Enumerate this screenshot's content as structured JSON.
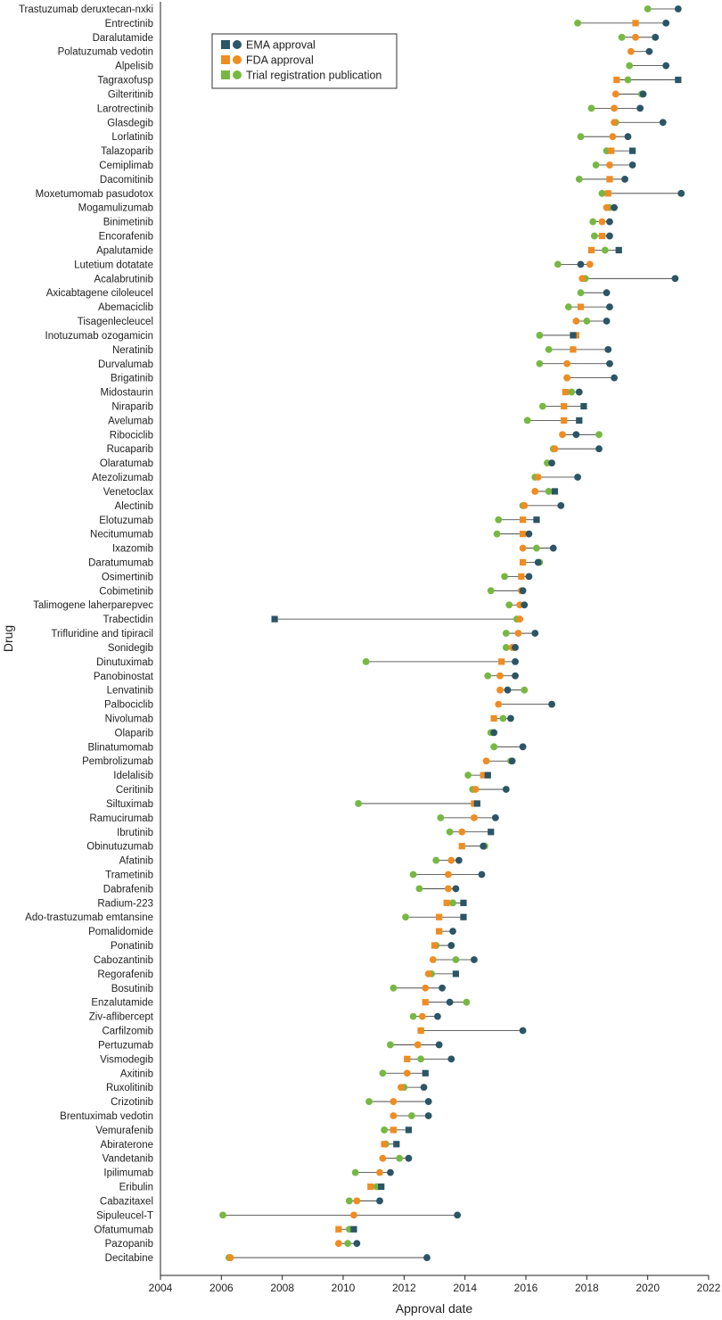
{
  "chart_data": {
    "type": "scatter",
    "xlabel": "Approval date",
    "ylabel": "Drug",
    "xlim": [
      2004,
      2022
    ],
    "x_ticks": [
      "2004",
      "2006",
      "2008",
      "2010",
      "2012",
      "2014",
      "2016",
      "2018",
      "2020",
      "2022"
    ],
    "grid": false,
    "legend_position": "top",
    "colors": {
      "ema": "#2c5566",
      "fda": "#ef8c22",
      "trial": "#77b843",
      "connector": "#333333"
    },
    "legend": [
      {
        "key": "ema",
        "label": "EMA approval"
      },
      {
        "key": "fda",
        "label": "FDA approval"
      },
      {
        "key": "trial",
        "label": "Trial registration publication"
      }
    ],
    "drugs": [
      {
        "name": "Trastuzumab deruxtecan-nxki",
        "ema": 2021.0,
        "ema_shape": "circle",
        "fda": null,
        "fda_shape": "circle",
        "trial": 2020.0,
        "trial_shape": "circle"
      },
      {
        "name": "Entrectinib",
        "ema": 2020.6,
        "ema_shape": "circle",
        "fda": 2019.6,
        "fda_shape": "square",
        "trial": 2017.7,
        "trial_shape": "circle"
      },
      {
        "name": "Daralutamide",
        "ema": 2020.25,
        "ema_shape": "circle",
        "fda": 2019.6,
        "fda_shape": "circle",
        "trial": 2019.15,
        "trial_shape": "circle"
      },
      {
        "name": "Polatuzumab vedotin",
        "ema": 2020.05,
        "ema_shape": "circle",
        "fda": 2019.45,
        "fda_shape": "circle",
        "trial": null,
        "trial_shape": "circle"
      },
      {
        "name": "Alpelisib",
        "ema": 2020.6,
        "ema_shape": "circle",
        "fda": null,
        "fda_shape": "circle",
        "trial": 2019.4,
        "trial_shape": "circle"
      },
      {
        "name": "Tagraxofusp",
        "ema": 2021.0,
        "ema_shape": "square",
        "fda": 2018.98,
        "fda_shape": "square",
        "trial": 2019.35,
        "trial_shape": "circle"
      },
      {
        "name": "Gilteritinib",
        "ema": 2019.85,
        "ema_shape": "circle",
        "fda": 2018.95,
        "fda_shape": "circle",
        "trial": 2019.8,
        "trial_shape": "circle"
      },
      {
        "name": "Larotrectinib",
        "ema": 2019.75,
        "ema_shape": "circle",
        "fda": 2018.9,
        "fda_shape": "circle",
        "trial": 2018.15,
        "trial_shape": "circle"
      },
      {
        "name": "Glasdegib",
        "ema": 2020.5,
        "ema_shape": "circle",
        "fda": 2018.9,
        "fda_shape": "circle",
        "trial": 2018.95,
        "trial_shape": "circle"
      },
      {
        "name": "Lorlatinib",
        "ema": 2019.35,
        "ema_shape": "circle",
        "fda": 2018.85,
        "fda_shape": "circle",
        "trial": 2017.8,
        "trial_shape": "circle"
      },
      {
        "name": "Talazoparib",
        "ema": 2019.5,
        "ema_shape": "square",
        "fda": 2018.8,
        "fda_shape": "square",
        "trial": 2018.65,
        "trial_shape": "circle"
      },
      {
        "name": "Cemiplimab",
        "ema": 2019.5,
        "ema_shape": "circle",
        "fda": 2018.75,
        "fda_shape": "circle",
        "trial": 2018.3,
        "trial_shape": "circle"
      },
      {
        "name": "Dacomitinib",
        "ema": 2019.25,
        "ema_shape": "circle",
        "fda": 2018.75,
        "fda_shape": "square",
        "trial": 2017.75,
        "trial_shape": "circle"
      },
      {
        "name": "Moxetumomab pasudotox",
        "ema": 2021.1,
        "ema_shape": "circle",
        "fda": 2018.7,
        "fda_shape": "square",
        "trial": 2018.5,
        "trial_shape": "circle"
      },
      {
        "name": "Mogamulizumab",
        "ema": 2018.9,
        "ema_shape": "circle",
        "fda": 2018.65,
        "fda_shape": "circle",
        "trial": 2018.75,
        "trial_shape": "circle"
      },
      {
        "name": "Binimetinib",
        "ema": 2018.75,
        "ema_shape": "circle",
        "fda": 2018.5,
        "fda_shape": "circle",
        "trial": 2018.2,
        "trial_shape": "circle"
      },
      {
        "name": "Encorafenib",
        "ema": 2018.75,
        "ema_shape": "circle",
        "fda": 2018.5,
        "fda_shape": "square",
        "trial": 2018.25,
        "trial_shape": "circle"
      },
      {
        "name": "Apalutamide",
        "ema": 2019.05,
        "ema_shape": "square",
        "fda": 2018.15,
        "fda_shape": "square",
        "trial": 2018.6,
        "trial_shape": "circle"
      },
      {
        "name": "Lutetium dotatate",
        "ema": 2017.8,
        "ema_shape": "circle",
        "fda": 2018.1,
        "fda_shape": "circle",
        "trial": 2017.05,
        "trial_shape": "circle"
      },
      {
        "name": "Acalabrutinib",
        "ema": 2020.9,
        "ema_shape": "circle",
        "fda": 2017.85,
        "fda_shape": "circle",
        "trial": 2017.95,
        "trial_shape": "circle"
      },
      {
        "name": "Axicabtagene ciloleucel",
        "ema": 2018.65,
        "ema_shape": "circle",
        "fda": null,
        "fda_shape": "circle",
        "trial": 2017.8,
        "trial_shape": "circle"
      },
      {
        "name": "Abemaciclib",
        "ema": 2018.75,
        "ema_shape": "circle",
        "fda": 2017.8,
        "fda_shape": "square",
        "trial": 2017.4,
        "trial_shape": "circle"
      },
      {
        "name": "Tisagenlecleucel",
        "ema": 2018.65,
        "ema_shape": "circle",
        "fda": 2017.65,
        "fda_shape": "circle",
        "trial": 2018.0,
        "trial_shape": "circle"
      },
      {
        "name": "Inotuzumab ozogamicin",
        "ema": 2017.55,
        "ema_shape": "square",
        "fda": 2017.65,
        "fda_shape": "square",
        "trial": 2016.45,
        "trial_shape": "circle"
      },
      {
        "name": "Neratinib",
        "ema": 2018.7,
        "ema_shape": "circle",
        "fda": 2017.55,
        "fda_shape": "square",
        "trial": 2016.75,
        "trial_shape": "circle"
      },
      {
        "name": "Durvalumab",
        "ema": 2018.75,
        "ema_shape": "circle",
        "fda": 2017.35,
        "fda_shape": "circle",
        "trial": 2016.45,
        "trial_shape": "circle"
      },
      {
        "name": "Brigatinib",
        "ema": 2018.9,
        "ema_shape": "circle",
        "fda": 2017.35,
        "fda_shape": "circle",
        "trial": 2017.35,
        "trial_shape": "circle"
      },
      {
        "name": "Midostaurin",
        "ema": 2017.75,
        "ema_shape": "circle",
        "fda": 2017.3,
        "fda_shape": "square",
        "trial": 2017.5,
        "trial_shape": "circle"
      },
      {
        "name": "Niraparib",
        "ema": 2017.9,
        "ema_shape": "square",
        "fda": 2017.25,
        "fda_shape": "square",
        "trial": 2016.55,
        "trial_shape": "circle"
      },
      {
        "name": "Avelumab",
        "ema": 2017.75,
        "ema_shape": "square",
        "fda": 2017.25,
        "fda_shape": "square",
        "trial": 2016.05,
        "trial_shape": "circle"
      },
      {
        "name": "Ribociclib",
        "ema": 2017.65,
        "ema_shape": "circle",
        "fda": 2017.2,
        "fda_shape": "circle",
        "trial": 2018.4,
        "trial_shape": "circle"
      },
      {
        "name": "Rucaparib",
        "ema": 2018.4,
        "ema_shape": "circle",
        "fda": 2016.95,
        "fda_shape": "circle",
        "trial": 2016.9,
        "trial_shape": "circle"
      },
      {
        "name": "Olaratumab",
        "ema": 2016.85,
        "ema_shape": "circle",
        "fda": null,
        "fda_shape": "circle",
        "trial": 2016.7,
        "trial_shape": "circle"
      },
      {
        "name": "Atezolizumab",
        "ema": 2017.7,
        "ema_shape": "circle",
        "fda": 2016.4,
        "fda_shape": "circle",
        "trial": 2016.3,
        "trial_shape": "circle"
      },
      {
        "name": "Venetoclax",
        "ema": 2016.95,
        "ema_shape": "square",
        "fda": 2016.3,
        "fda_shape": "circle",
        "trial": 2016.75,
        "trial_shape": "circle"
      },
      {
        "name": "Alectinib",
        "ema": 2017.15,
        "ema_shape": "circle",
        "fda": 2015.95,
        "fda_shape": "circle",
        "trial": 2015.9,
        "trial_shape": "circle"
      },
      {
        "name": "Elotuzumab",
        "ema": 2016.35,
        "ema_shape": "square",
        "fda": 2015.9,
        "fda_shape": "square",
        "trial": 2015.1,
        "trial_shape": "circle"
      },
      {
        "name": "Necitumumab",
        "ema": 2016.1,
        "ema_shape": "circle",
        "fda": 2015.9,
        "fda_shape": "square",
        "trial": 2015.05,
        "trial_shape": "circle"
      },
      {
        "name": "Ixazomib",
        "ema": 2016.9,
        "ema_shape": "circle",
        "fda": 2015.9,
        "fda_shape": "circle",
        "trial": 2016.35,
        "trial_shape": "circle"
      },
      {
        "name": "Daratumumab",
        "ema": 2016.4,
        "ema_shape": "circle",
        "fda": 2015.9,
        "fda_shape": "square",
        "trial": 2016.45,
        "trial_shape": "circle"
      },
      {
        "name": "Osimertinib",
        "ema": 2016.1,
        "ema_shape": "circle",
        "fda": 2015.85,
        "fda_shape": "square",
        "trial": 2015.3,
        "trial_shape": "circle"
      },
      {
        "name": "Cobimetinib",
        "ema": 2015.9,
        "ema_shape": "circle",
        "fda": 2015.85,
        "fda_shape": "circle",
        "trial": 2014.85,
        "trial_shape": "circle"
      },
      {
        "name": "Talimogene laherparepvec",
        "ema": 2015.95,
        "ema_shape": "circle",
        "fda": 2015.8,
        "fda_shape": "circle",
        "trial": 2015.45,
        "trial_shape": "circle"
      },
      {
        "name": "Trabectidin",
        "ema": 2007.75,
        "ema_shape": "square",
        "fda": 2015.8,
        "fda_shape": "circle",
        "trial": 2015.7,
        "trial_shape": "circle"
      },
      {
        "name": "Trifluridine and tipiracil",
        "ema": 2016.3,
        "ema_shape": "circle",
        "fda": 2015.75,
        "fda_shape": "circle",
        "trial": 2015.35,
        "trial_shape": "circle"
      },
      {
        "name": "Sonidegib",
        "ema": 2015.65,
        "ema_shape": "circle",
        "fda": 2015.55,
        "fda_shape": "circle",
        "trial": 2015.35,
        "trial_shape": "circle"
      },
      {
        "name": "Dinutuximab",
        "ema": 2015.65,
        "ema_shape": "circle",
        "fda": 2015.2,
        "fda_shape": "square",
        "trial": 2010.75,
        "trial_shape": "circle"
      },
      {
        "name": "Panobinostat",
        "ema": 2015.65,
        "ema_shape": "circle",
        "fda": 2015.15,
        "fda_shape": "circle",
        "trial": 2014.75,
        "trial_shape": "circle"
      },
      {
        "name": "Lenvatinib",
        "ema": 2015.4,
        "ema_shape": "circle",
        "fda": 2015.15,
        "fda_shape": "circle",
        "trial": 2015.95,
        "trial_shape": "circle"
      },
      {
        "name": "Palbociclib",
        "ema": 2016.85,
        "ema_shape": "circle",
        "fda": 2015.1,
        "fda_shape": "circle",
        "trial": 2016.85,
        "trial_shape": "circle"
      },
      {
        "name": "Nivolumab",
        "ema": 2015.5,
        "ema_shape": "circle",
        "fda": 2014.95,
        "fda_shape": "square",
        "trial": 2015.25,
        "trial_shape": "circle"
      },
      {
        "name": "Olaparib",
        "ema": 2014.95,
        "ema_shape": "circle",
        "fda": null,
        "fda_shape": "circle",
        "trial": 2014.85,
        "trial_shape": "circle"
      },
      {
        "name": "Blinatumomab",
        "ema": 2015.9,
        "ema_shape": "circle",
        "fda": null,
        "fda_shape": "circle",
        "trial": 2014.95,
        "trial_shape": "circle"
      },
      {
        "name": "Pembrolizumab",
        "ema": 2015.55,
        "ema_shape": "circle",
        "fda": 2014.7,
        "fda_shape": "circle",
        "trial": 2015.5,
        "trial_shape": "circle"
      },
      {
        "name": "Idelalisib",
        "ema": 2014.75,
        "ema_shape": "square",
        "fda": 2014.6,
        "fda_shape": "square",
        "trial": 2014.1,
        "trial_shape": "circle"
      },
      {
        "name": "Ceritinib",
        "ema": 2015.35,
        "ema_shape": "circle",
        "fda": 2014.35,
        "fda_shape": "circle",
        "trial": 2014.25,
        "trial_shape": "circle"
      },
      {
        "name": "Siltuximab",
        "ema": 2014.4,
        "ema_shape": "square",
        "fda": 2014.3,
        "fda_shape": "square",
        "trial": 2010.5,
        "trial_shape": "circle"
      },
      {
        "name": "Ramucirumab",
        "ema": 2015.0,
        "ema_shape": "circle",
        "fda": 2014.3,
        "fda_shape": "circle",
        "trial": 2013.2,
        "trial_shape": "circle"
      },
      {
        "name": "Ibrutinib",
        "ema": 2014.85,
        "ema_shape": "square",
        "fda": 2013.9,
        "fda_shape": "circle",
        "trial": 2013.5,
        "trial_shape": "circle"
      },
      {
        "name": "Obinutuzumab",
        "ema": 2014.6,
        "ema_shape": "circle",
        "fda": 2013.9,
        "fda_shape": "square",
        "trial": 2014.65,
        "trial_shape": "circle"
      },
      {
        "name": "Afatinib",
        "ema": 2013.8,
        "ema_shape": "circle",
        "fda": 2013.55,
        "fda_shape": "circle",
        "trial": 2013.05,
        "trial_shape": "circle"
      },
      {
        "name": "Trametinib",
        "ema": 2014.55,
        "ema_shape": "circle",
        "fda": 2013.45,
        "fda_shape": "circle",
        "trial": 2012.3,
        "trial_shape": "circle"
      },
      {
        "name": "Dabrafenib",
        "ema": 2013.7,
        "ema_shape": "circle",
        "fda": 2013.45,
        "fda_shape": "circle",
        "trial": 2012.5,
        "trial_shape": "circle"
      },
      {
        "name": "Radium-223",
        "ema": 2013.95,
        "ema_shape": "square",
        "fda": 2013.4,
        "fda_shape": "square",
        "trial": 2013.6,
        "trial_shape": "circle"
      },
      {
        "name": "Ado-trastuzumab emtansine",
        "ema": 2013.95,
        "ema_shape": "square",
        "fda": 2013.15,
        "fda_shape": "square",
        "trial": 2012.05,
        "trial_shape": "circle"
      },
      {
        "name": "Pomalidomide",
        "ema": 2013.6,
        "ema_shape": "circle",
        "fda": 2013.15,
        "fda_shape": "square",
        "trial": null,
        "trial_shape": "circle"
      },
      {
        "name": "Ponatinib",
        "ema": 2013.55,
        "ema_shape": "circle",
        "fda": 2013.0,
        "fda_shape": "square",
        "trial": 2013.05,
        "trial_shape": "circle"
      },
      {
        "name": "Cabozantinib",
        "ema": 2014.3,
        "ema_shape": "circle",
        "fda": 2012.95,
        "fda_shape": "circle",
        "trial": 2013.7,
        "trial_shape": "circle"
      },
      {
        "name": "Regorafenib",
        "ema": 2013.7,
        "ema_shape": "square",
        "fda": 2012.8,
        "fda_shape": "circle",
        "trial": 2012.9,
        "trial_shape": "circle"
      },
      {
        "name": "Bosutinib",
        "ema": 2013.25,
        "ema_shape": "circle",
        "fda": 2012.7,
        "fda_shape": "circle",
        "trial": 2011.65,
        "trial_shape": "circle"
      },
      {
        "name": "Enzalutamide",
        "ema": 2013.5,
        "ema_shape": "circle",
        "fda": 2012.7,
        "fda_shape": "square",
        "trial": 2014.05,
        "trial_shape": "circle"
      },
      {
        "name": "Ziv-aflibercept",
        "ema": 2013.1,
        "ema_shape": "circle",
        "fda": 2012.6,
        "fda_shape": "circle",
        "trial": 2012.3,
        "trial_shape": "circle"
      },
      {
        "name": "Carfilzomib",
        "ema": 2015.9,
        "ema_shape": "circle",
        "fda": 2012.55,
        "fda_shape": "square",
        "trial": 2012.55,
        "trial_shape": "circle"
      },
      {
        "name": "Pertuzumab",
        "ema": 2013.15,
        "ema_shape": "circle",
        "fda": 2012.45,
        "fda_shape": "circle",
        "trial": 2011.55,
        "trial_shape": "circle"
      },
      {
        "name": "Vismodegib",
        "ema": 2013.55,
        "ema_shape": "circle",
        "fda": 2012.1,
        "fda_shape": "square",
        "trial": 2012.55,
        "trial_shape": "circle"
      },
      {
        "name": "Axitinib",
        "ema": 2012.7,
        "ema_shape": "square",
        "fda": 2012.1,
        "fda_shape": "circle",
        "trial": 2011.3,
        "trial_shape": "circle"
      },
      {
        "name": "Ruxolitinib",
        "ema": 2012.65,
        "ema_shape": "circle",
        "fda": 2011.9,
        "fda_shape": "circle",
        "trial": 2012.0,
        "trial_shape": "circle"
      },
      {
        "name": "Crizotinib",
        "ema": 2012.8,
        "ema_shape": "circle",
        "fda": 2011.65,
        "fda_shape": "circle",
        "trial": 2010.85,
        "trial_shape": "circle"
      },
      {
        "name": "Brentuximab vedotin",
        "ema": 2012.8,
        "ema_shape": "circle",
        "fda": 2011.65,
        "fda_shape": "circle",
        "trial": 2012.25,
        "trial_shape": "circle"
      },
      {
        "name": "Vemurafenib",
        "ema": 2012.15,
        "ema_shape": "square",
        "fda": 2011.65,
        "fda_shape": "square",
        "trial": 2011.35,
        "trial_shape": "circle"
      },
      {
        "name": "Abiraterone",
        "ema": 2011.75,
        "ema_shape": "square",
        "fda": 2011.35,
        "fda_shape": "square",
        "trial": 2011.4,
        "trial_shape": "circle"
      },
      {
        "name": "Vandetanib",
        "ema": 2012.15,
        "ema_shape": "circle",
        "fda": 2011.3,
        "fda_shape": "circle",
        "trial": 2011.85,
        "trial_shape": "circle"
      },
      {
        "name": "Ipilimumab",
        "ema": 2011.55,
        "ema_shape": "circle",
        "fda": 2011.2,
        "fda_shape": "circle",
        "trial": 2010.4,
        "trial_shape": "circle"
      },
      {
        "name": "Eribulin",
        "ema": 2011.25,
        "ema_shape": "square",
        "fda": 2010.9,
        "fda_shape": "square",
        "trial": 2011.1,
        "trial_shape": "circle"
      },
      {
        "name": "Cabazitaxel",
        "ema": 2011.2,
        "ema_shape": "circle",
        "fda": 2010.45,
        "fda_shape": "circle",
        "trial": 2010.2,
        "trial_shape": "circle"
      },
      {
        "name": "Sipuleucel-T",
        "ema": 2013.75,
        "ema_shape": "circle",
        "fda": 2010.35,
        "fda_shape": "circle",
        "trial": 2006.05,
        "trial_shape": "circle"
      },
      {
        "name": "Ofatumumab",
        "ema": 2010.35,
        "ema_shape": "square",
        "fda": 2009.85,
        "fda_shape": "square",
        "trial": 2010.2,
        "trial_shape": "circle"
      },
      {
        "name": "Pazopanib",
        "ema": 2010.45,
        "ema_shape": "circle",
        "fda": 2009.85,
        "fda_shape": "circle",
        "trial": 2010.15,
        "trial_shape": "circle"
      },
      {
        "name": "Decitabine",
        "ema": 2012.75,
        "ema_shape": "circle",
        "fda": 2006.3,
        "fda_shape": "circle",
        "trial": 2006.25,
        "trial_shape": "circle"
      }
    ]
  }
}
